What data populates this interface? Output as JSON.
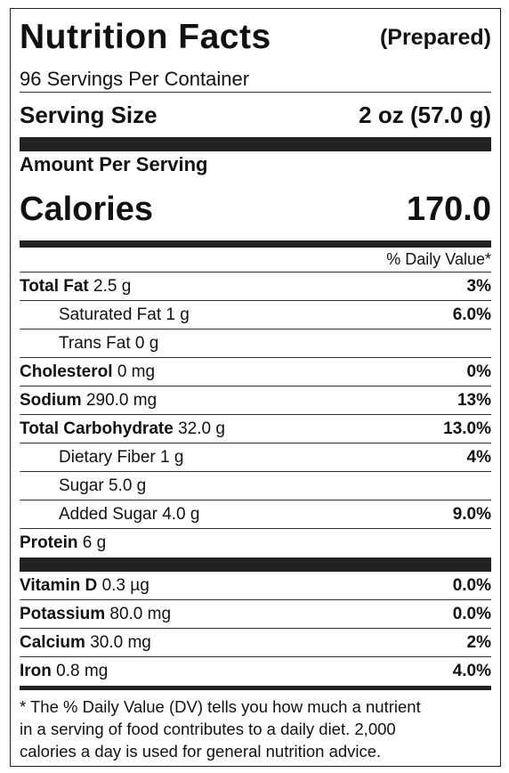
{
  "header": {
    "title": "Nutrition Facts",
    "qualifier": "(Prepared)"
  },
  "servings": "96 Servings Per Container",
  "serving_size": {
    "label": "Serving Size",
    "value": "2 oz (57.0 g)"
  },
  "amount_per_serving": "Amount Per Serving",
  "calories": {
    "label": "Calories",
    "value": "170.0"
  },
  "daily_value_header": "% Daily Value*",
  "nutrients": [
    {
      "name": "Total Fat",
      "amount": "2.5 g",
      "dv": "3%",
      "subs": [
        {
          "name": "Saturated Fat",
          "amount": "1 g",
          "dv": "6.0%"
        },
        {
          "name": "Trans Fat",
          "amount": "0 g"
        }
      ]
    },
    {
      "name": "Cholesterol",
      "amount": "0 mg",
      "dv": "0%"
    },
    {
      "name": "Sodium",
      "amount": "290.0 mg",
      "dv": "13%"
    },
    {
      "name": "Total Carbohydrate",
      "amount": "32.0 g",
      "dv": "13.0%",
      "subs": [
        {
          "name": "Dietary Fiber",
          "amount": "1 g",
          "dv": "4%"
        },
        {
          "name": "Sugar",
          "amount": "5.0 g"
        },
        {
          "name": "Added Sugar",
          "amount": "4.0 g",
          "dv": "9.0%"
        }
      ]
    },
    {
      "name": "Protein",
      "amount": "6 g"
    }
  ],
  "vitamins": [
    {
      "name": "Vitamin D",
      "amount": "0.3 µg",
      "dv": "0.0%"
    },
    {
      "name": "Potassium",
      "amount": "80.0 mg",
      "dv": "0.0%"
    },
    {
      "name": "Calcium",
      "amount": "30.0 mg",
      "dv": "2%"
    },
    {
      "name": "Iron",
      "amount": "0.8 mg",
      "dv": "4.0%"
    }
  ],
  "footnote": [
    "* The % Daily Value (DV) tells you how much a nutrient",
    "in a serving of food contributes to a daily diet. 2,000",
    "calories a day is used for general nutrition advice."
  ]
}
